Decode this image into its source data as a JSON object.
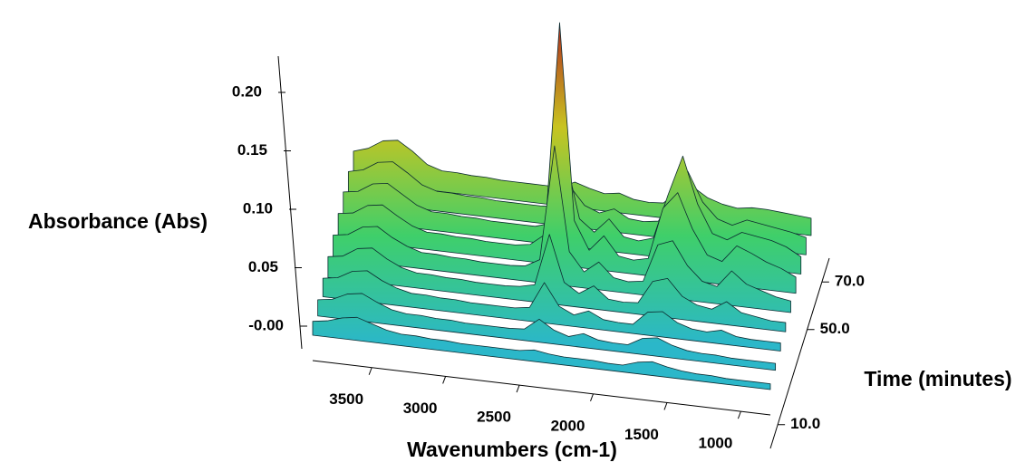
{
  "chart_data": {
    "type": "waterfall",
    "z_label": "Absorbance (Abs)",
    "x_label": "Wavenumbers (cm-1)",
    "y_label": "Time (minutes)",
    "x": [
      3900,
      3800,
      3700,
      3600,
      3500,
      3400,
      3300,
      3200,
      3100,
      3000,
      2900,
      2800,
      2700,
      2600,
      2500,
      2400,
      2300,
      2200,
      2100,
      2000,
      1900,
      1800,
      1700,
      1600,
      1500,
      1400,
      1300,
      1200,
      1100,
      1000,
      900,
      800
    ],
    "y": [
      0,
      10,
      20,
      30,
      40,
      50,
      60,
      70,
      80
    ],
    "values": [
      [
        0.012,
        0.014,
        0.018,
        0.02,
        0.016,
        0.012,
        0.01,
        0.01,
        0.009,
        0.009,
        0.008,
        0.008,
        0.008,
        0.008,
        0.008,
        0.01,
        0.008,
        0.007,
        0.007,
        0.007,
        0.006,
        0.006,
        0.01,
        0.012,
        0.009,
        0.007,
        0.006,
        0.006,
        0.005,
        0.005,
        0.005,
        0.005
      ],
      [
        0.014,
        0.016,
        0.022,
        0.024,
        0.018,
        0.013,
        0.011,
        0.011,
        0.01,
        0.01,
        0.009,
        0.009,
        0.009,
        0.009,
        0.01,
        0.02,
        0.012,
        0.008,
        0.012,
        0.008,
        0.007,
        0.007,
        0.014,
        0.016,
        0.011,
        0.008,
        0.007,
        0.007,
        0.006,
        0.006,
        0.006,
        0.006
      ],
      [
        0.016,
        0.018,
        0.025,
        0.027,
        0.02,
        0.015,
        0.012,
        0.012,
        0.011,
        0.011,
        0.01,
        0.01,
        0.01,
        0.01,
        0.012,
        0.035,
        0.016,
        0.01,
        0.015,
        0.009,
        0.008,
        0.008,
        0.02,
        0.022,
        0.014,
        0.01,
        0.009,
        0.012,
        0.008,
        0.007,
        0.007,
        0.007
      ],
      [
        0.018,
        0.02,
        0.028,
        0.03,
        0.022,
        0.016,
        0.013,
        0.013,
        0.012,
        0.012,
        0.011,
        0.011,
        0.011,
        0.012,
        0.015,
        0.06,
        0.02,
        0.012,
        0.02,
        0.01,
        0.009,
        0.01,
        0.03,
        0.034,
        0.02,
        0.014,
        0.012,
        0.02,
        0.012,
        0.01,
        0.008,
        0.008
      ],
      [
        0.02,
        0.022,
        0.03,
        0.032,
        0.024,
        0.018,
        0.014,
        0.014,
        0.013,
        0.013,
        0.012,
        0.012,
        0.012,
        0.013,
        0.02,
        0.12,
        0.03,
        0.014,
        0.024,
        0.012,
        0.01,
        0.012,
        0.045,
        0.05,
        0.03,
        0.018,
        0.015,
        0.03,
        0.02,
        0.016,
        0.012,
        0.01
      ],
      [
        0.022,
        0.024,
        0.032,
        0.034,
        0.026,
        0.019,
        0.015,
        0.015,
        0.014,
        0.014,
        0.013,
        0.013,
        0.013,
        0.015,
        0.025,
        0.21,
        0.04,
        0.016,
        0.03,
        0.014,
        0.012,
        0.015,
        0.06,
        0.075,
        0.045,
        0.024,
        0.02,
        0.035,
        0.03,
        0.024,
        0.02,
        0.014
      ],
      [
        0.024,
        0.026,
        0.034,
        0.036,
        0.028,
        0.02,
        0.016,
        0.016,
        0.015,
        0.015,
        0.014,
        0.014,
        0.014,
        0.014,
        0.018,
        0.08,
        0.025,
        0.015,
        0.028,
        0.014,
        0.012,
        0.016,
        0.055,
        0.09,
        0.05,
        0.026,
        0.022,
        0.03,
        0.028,
        0.026,
        0.022,
        0.015
      ],
      [
        0.025,
        0.028,
        0.036,
        0.038,
        0.03,
        0.021,
        0.017,
        0.017,
        0.016,
        0.016,
        0.015,
        0.015,
        0.015,
        0.015,
        0.016,
        0.035,
        0.02,
        0.015,
        0.02,
        0.013,
        0.012,
        0.014,
        0.04,
        0.06,
        0.035,
        0.022,
        0.018,
        0.024,
        0.022,
        0.02,
        0.018,
        0.015
      ],
      [
        0.026,
        0.03,
        0.038,
        0.04,
        0.032,
        0.022,
        0.018,
        0.018,
        0.017,
        0.017,
        0.016,
        0.016,
        0.016,
        0.016,
        0.016,
        0.022,
        0.018,
        0.015,
        0.017,
        0.013,
        0.012,
        0.013,
        0.025,
        0.03,
        0.022,
        0.018,
        0.016,
        0.018,
        0.018,
        0.017,
        0.016,
        0.015
      ]
    ],
    "colorscale": [
      "#2bb7c9",
      "#3fcf6a",
      "#c8c420",
      "#b0241e"
    ],
    "zlim": [
      0,
      0.2
    ],
    "zticks": [
      {
        "value": 0,
        "label": "-0.00"
      },
      0.05,
      {
        "value": 0.1,
        "label": "0.10"
      },
      0.15,
      {
        "value": 0.2,
        "label": "0.20"
      }
    ],
    "xlim": [
      3900,
      800
    ],
    "xticks": [
      3500,
      3000,
      2500,
      2000,
      1500,
      1000
    ],
    "ylim": [
      0,
      80
    ],
    "yticks": [
      {
        "value": 10,
        "label": "10.0"
      },
      {
        "value": 50,
        "label": "50.0"
      },
      {
        "value": 70,
        "label": "70.0"
      }
    ]
  }
}
